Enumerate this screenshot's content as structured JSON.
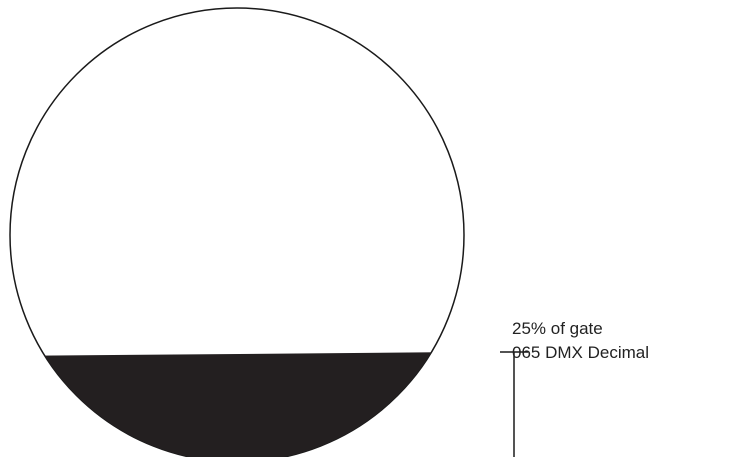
{
  "gate": {
    "percent_label": "25% of gate",
    "dmx_label": "065 DMX Decimal",
    "coverage_fraction": 0.25
  },
  "colors": {
    "background": "#ffffff",
    "outline": "#1a1a1a",
    "shutter_fill": "#231f20",
    "text": "#222222"
  }
}
